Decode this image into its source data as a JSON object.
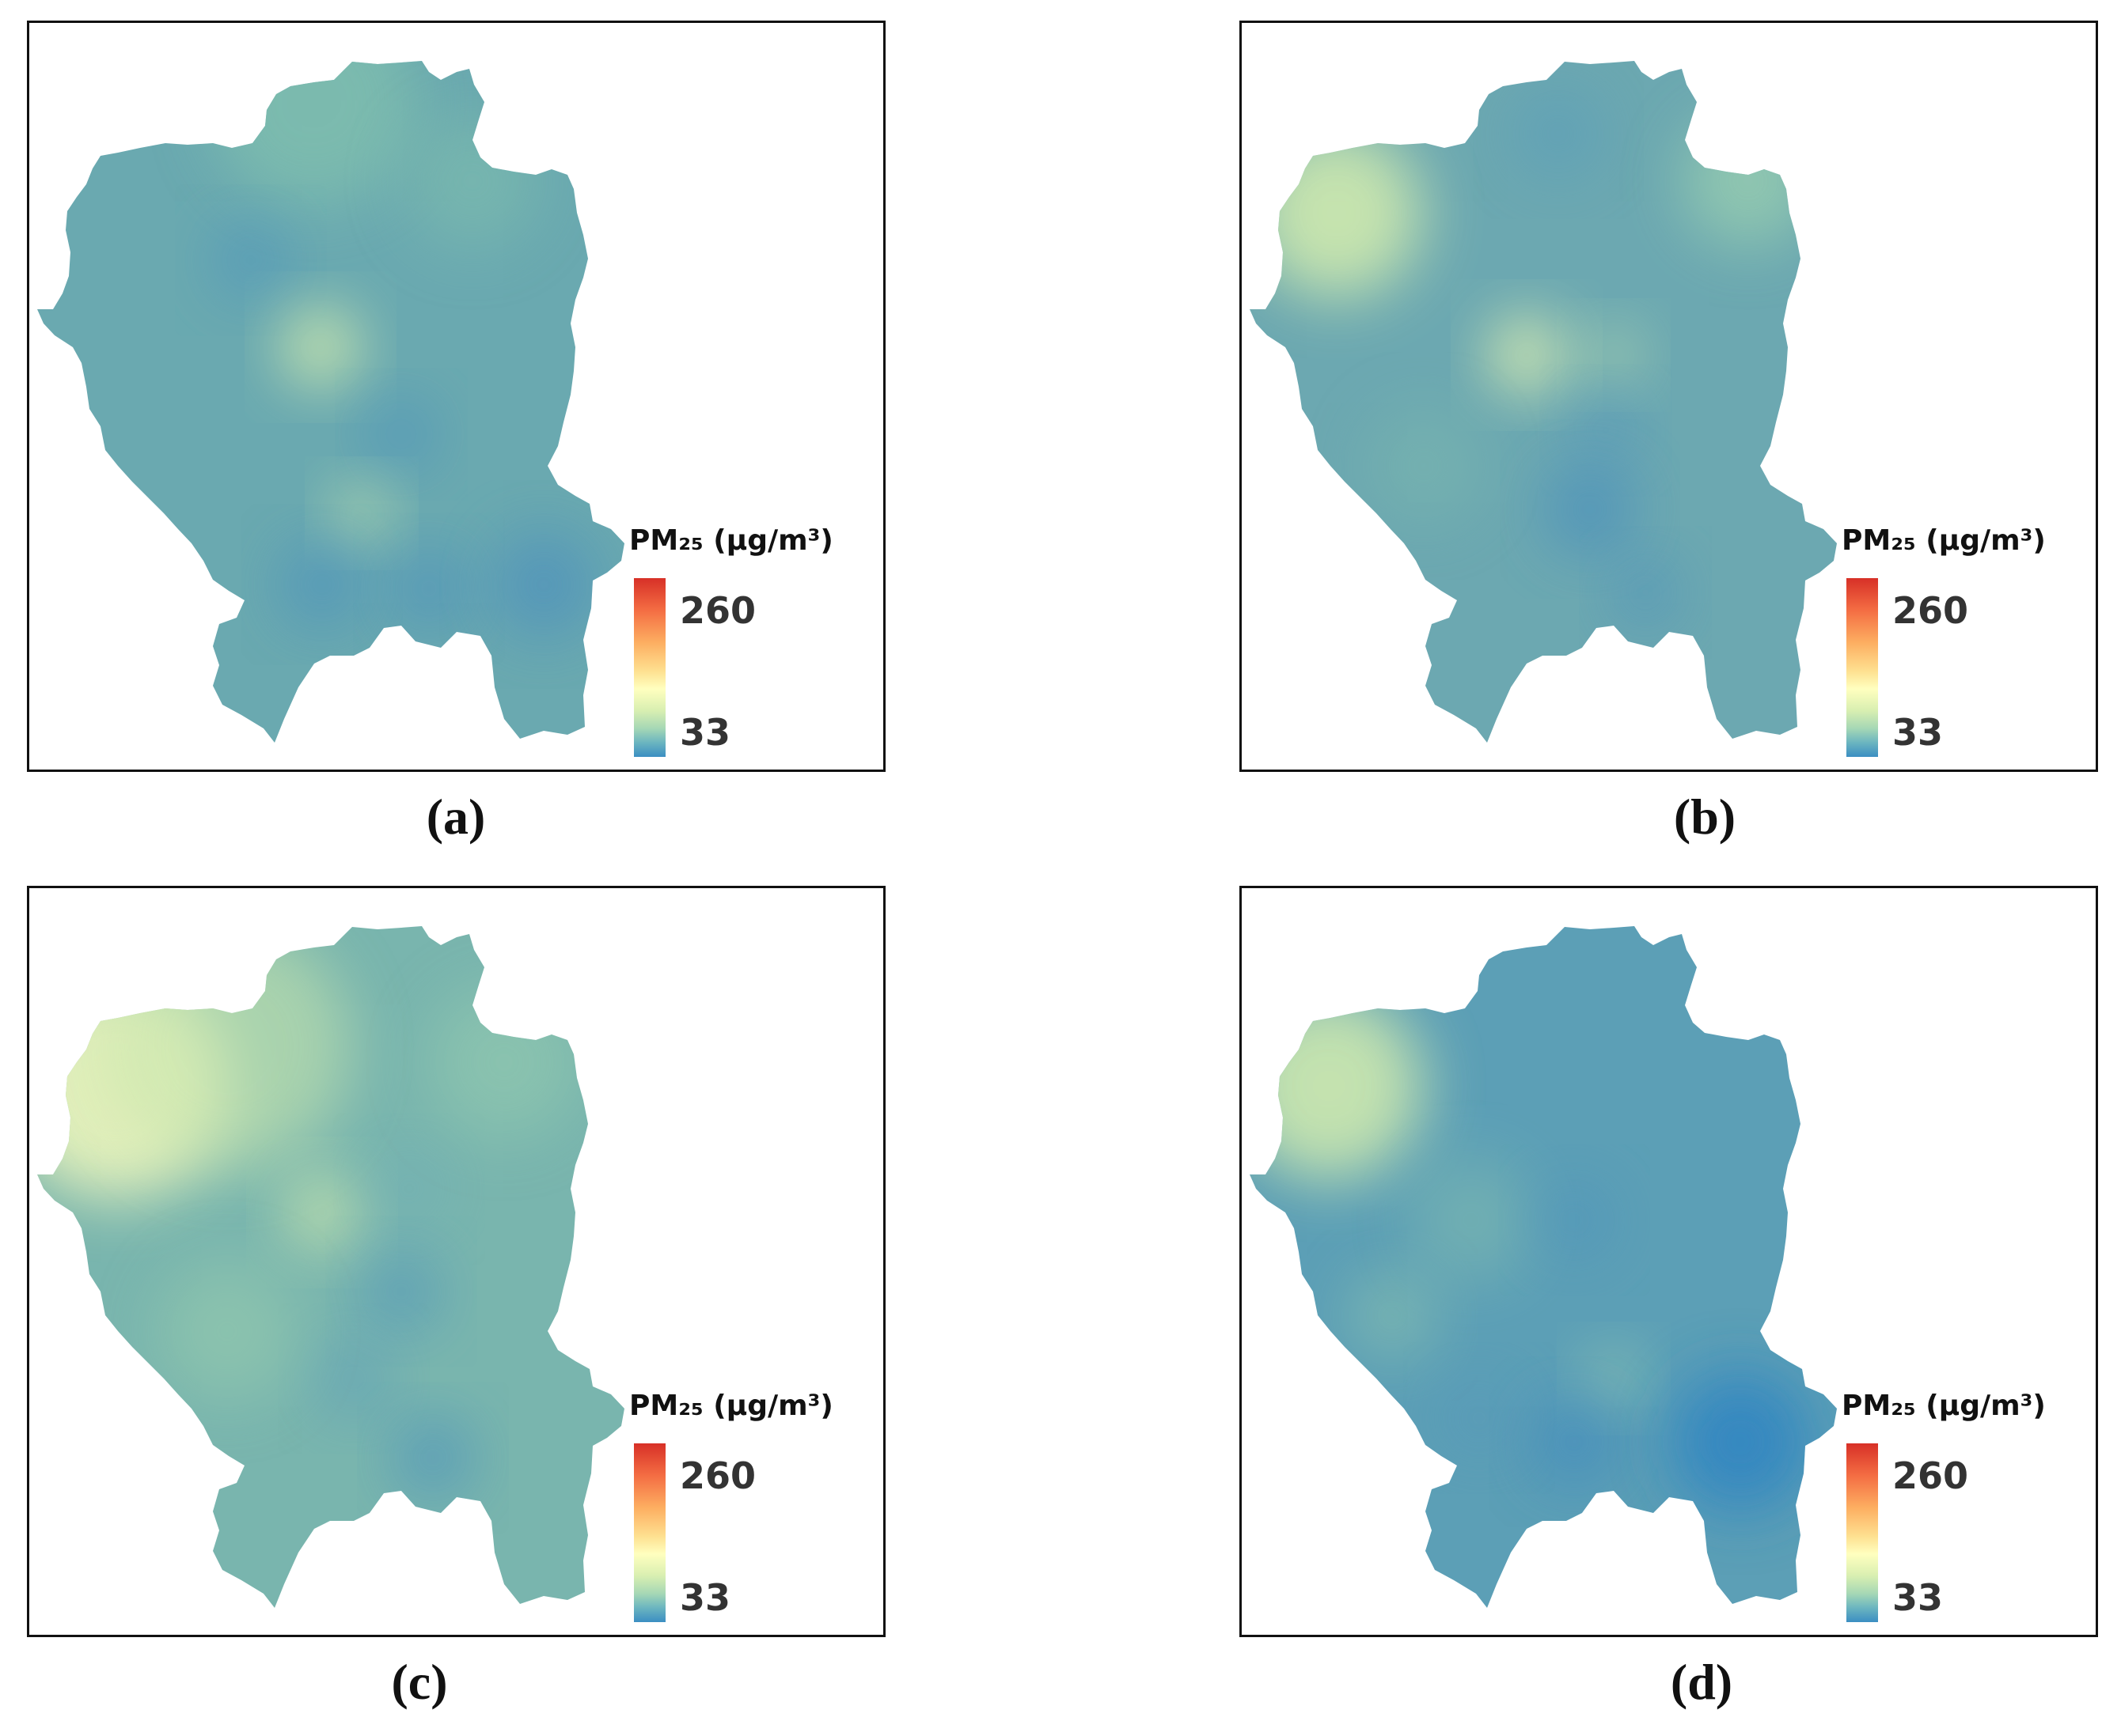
{
  "panels": [
    {
      "caption": "(a)",
      "legend": {
        "title": "PM₂₅ (μg/m³)",
        "max_label": "260",
        "min_label": "33"
      },
      "base_color": "#6aa9b0"
    },
    {
      "caption": "(b)",
      "legend": {
        "title": "PM₂₅ (μg/m³)",
        "max_label": "260",
        "min_label": "33"
      },
      "base_color": "#6ca8b1"
    },
    {
      "caption": "(c)",
      "legend": {
        "title": "PM₂₅ (μg/m³)",
        "max_label": "260",
        "min_label": "33"
      },
      "base_color": "#79b5ae"
    },
    {
      "caption": "(d)",
      "legend": {
        "title": "PM₂₅ (μg/m³)",
        "max_label": "260",
        "min_label": "33"
      },
      "base_color": "#5c9fb6"
    }
  ],
  "colorscale": {
    "max": 260,
    "min": 33,
    "stops": [
      "#d73027",
      "#f46d43",
      "#fdae61",
      "#fee090",
      "#ffffbf",
      "#d9efb1",
      "#a6d8b5",
      "#6bb5c0",
      "#3b8ec2"
    ]
  }
}
